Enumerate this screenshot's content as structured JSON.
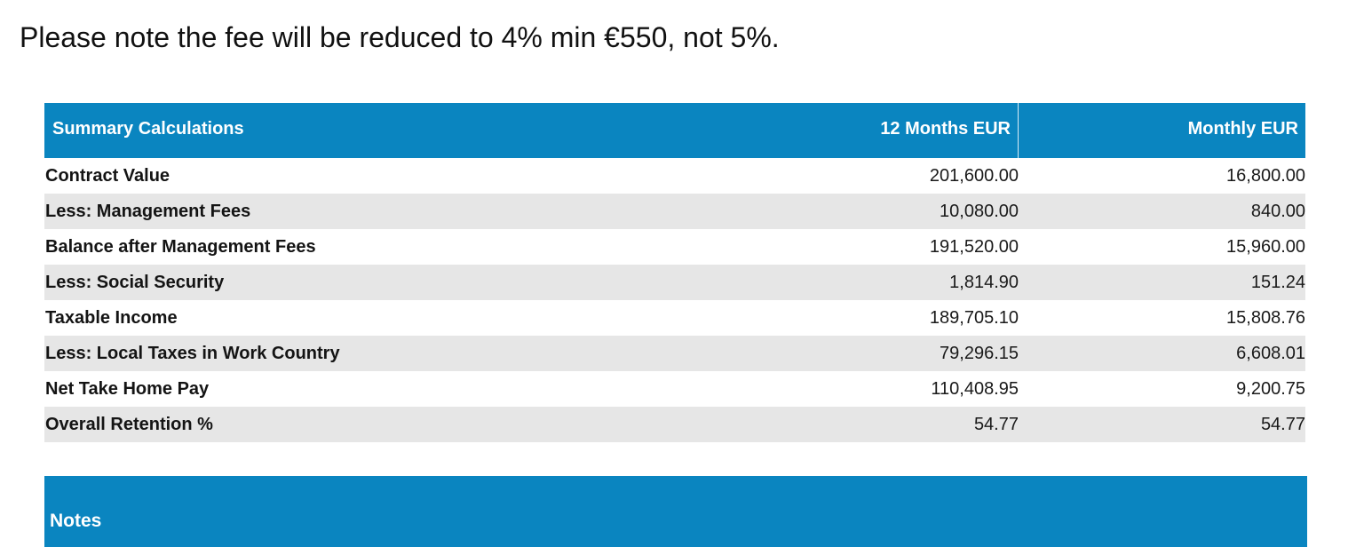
{
  "intro_text": "Please note the fee will be reduced to 4% min €550, not 5%.",
  "summary": {
    "headers": {
      "label": "Summary Calculations",
      "twelve_months": "12 Months EUR",
      "monthly": "Monthly EUR"
    },
    "rows": [
      {
        "label": "Contract Value",
        "twelve_months": "201,600.00",
        "monthly": "16,800.00"
      },
      {
        "label": "Less: Management Fees",
        "twelve_months": "10,080.00",
        "monthly": "840.00"
      },
      {
        "label": "Balance after Management Fees",
        "twelve_months": "191,520.00",
        "monthly": "15,960.00"
      },
      {
        "label": "Less: Social Security",
        "twelve_months": "1,814.90",
        "monthly": "151.24"
      },
      {
        "label": "Taxable Income",
        "twelve_months": "189,705.10",
        "monthly": "15,808.76"
      },
      {
        "label": "Less: Local Taxes in Work Country",
        "twelve_months": "79,296.15",
        "monthly": "6,608.01"
      },
      {
        "label": "Net Take Home Pay",
        "twelve_months": "110,408.95",
        "monthly": "9,200.75"
      },
      {
        "label": "Overall Retention %",
        "twelve_months": "54.77",
        "monthly": "54.77"
      }
    ]
  },
  "notes": {
    "title": "Notes"
  },
  "colors": {
    "header_blue": "#0a85c0",
    "row_stripe": "#e6e6e6"
  }
}
